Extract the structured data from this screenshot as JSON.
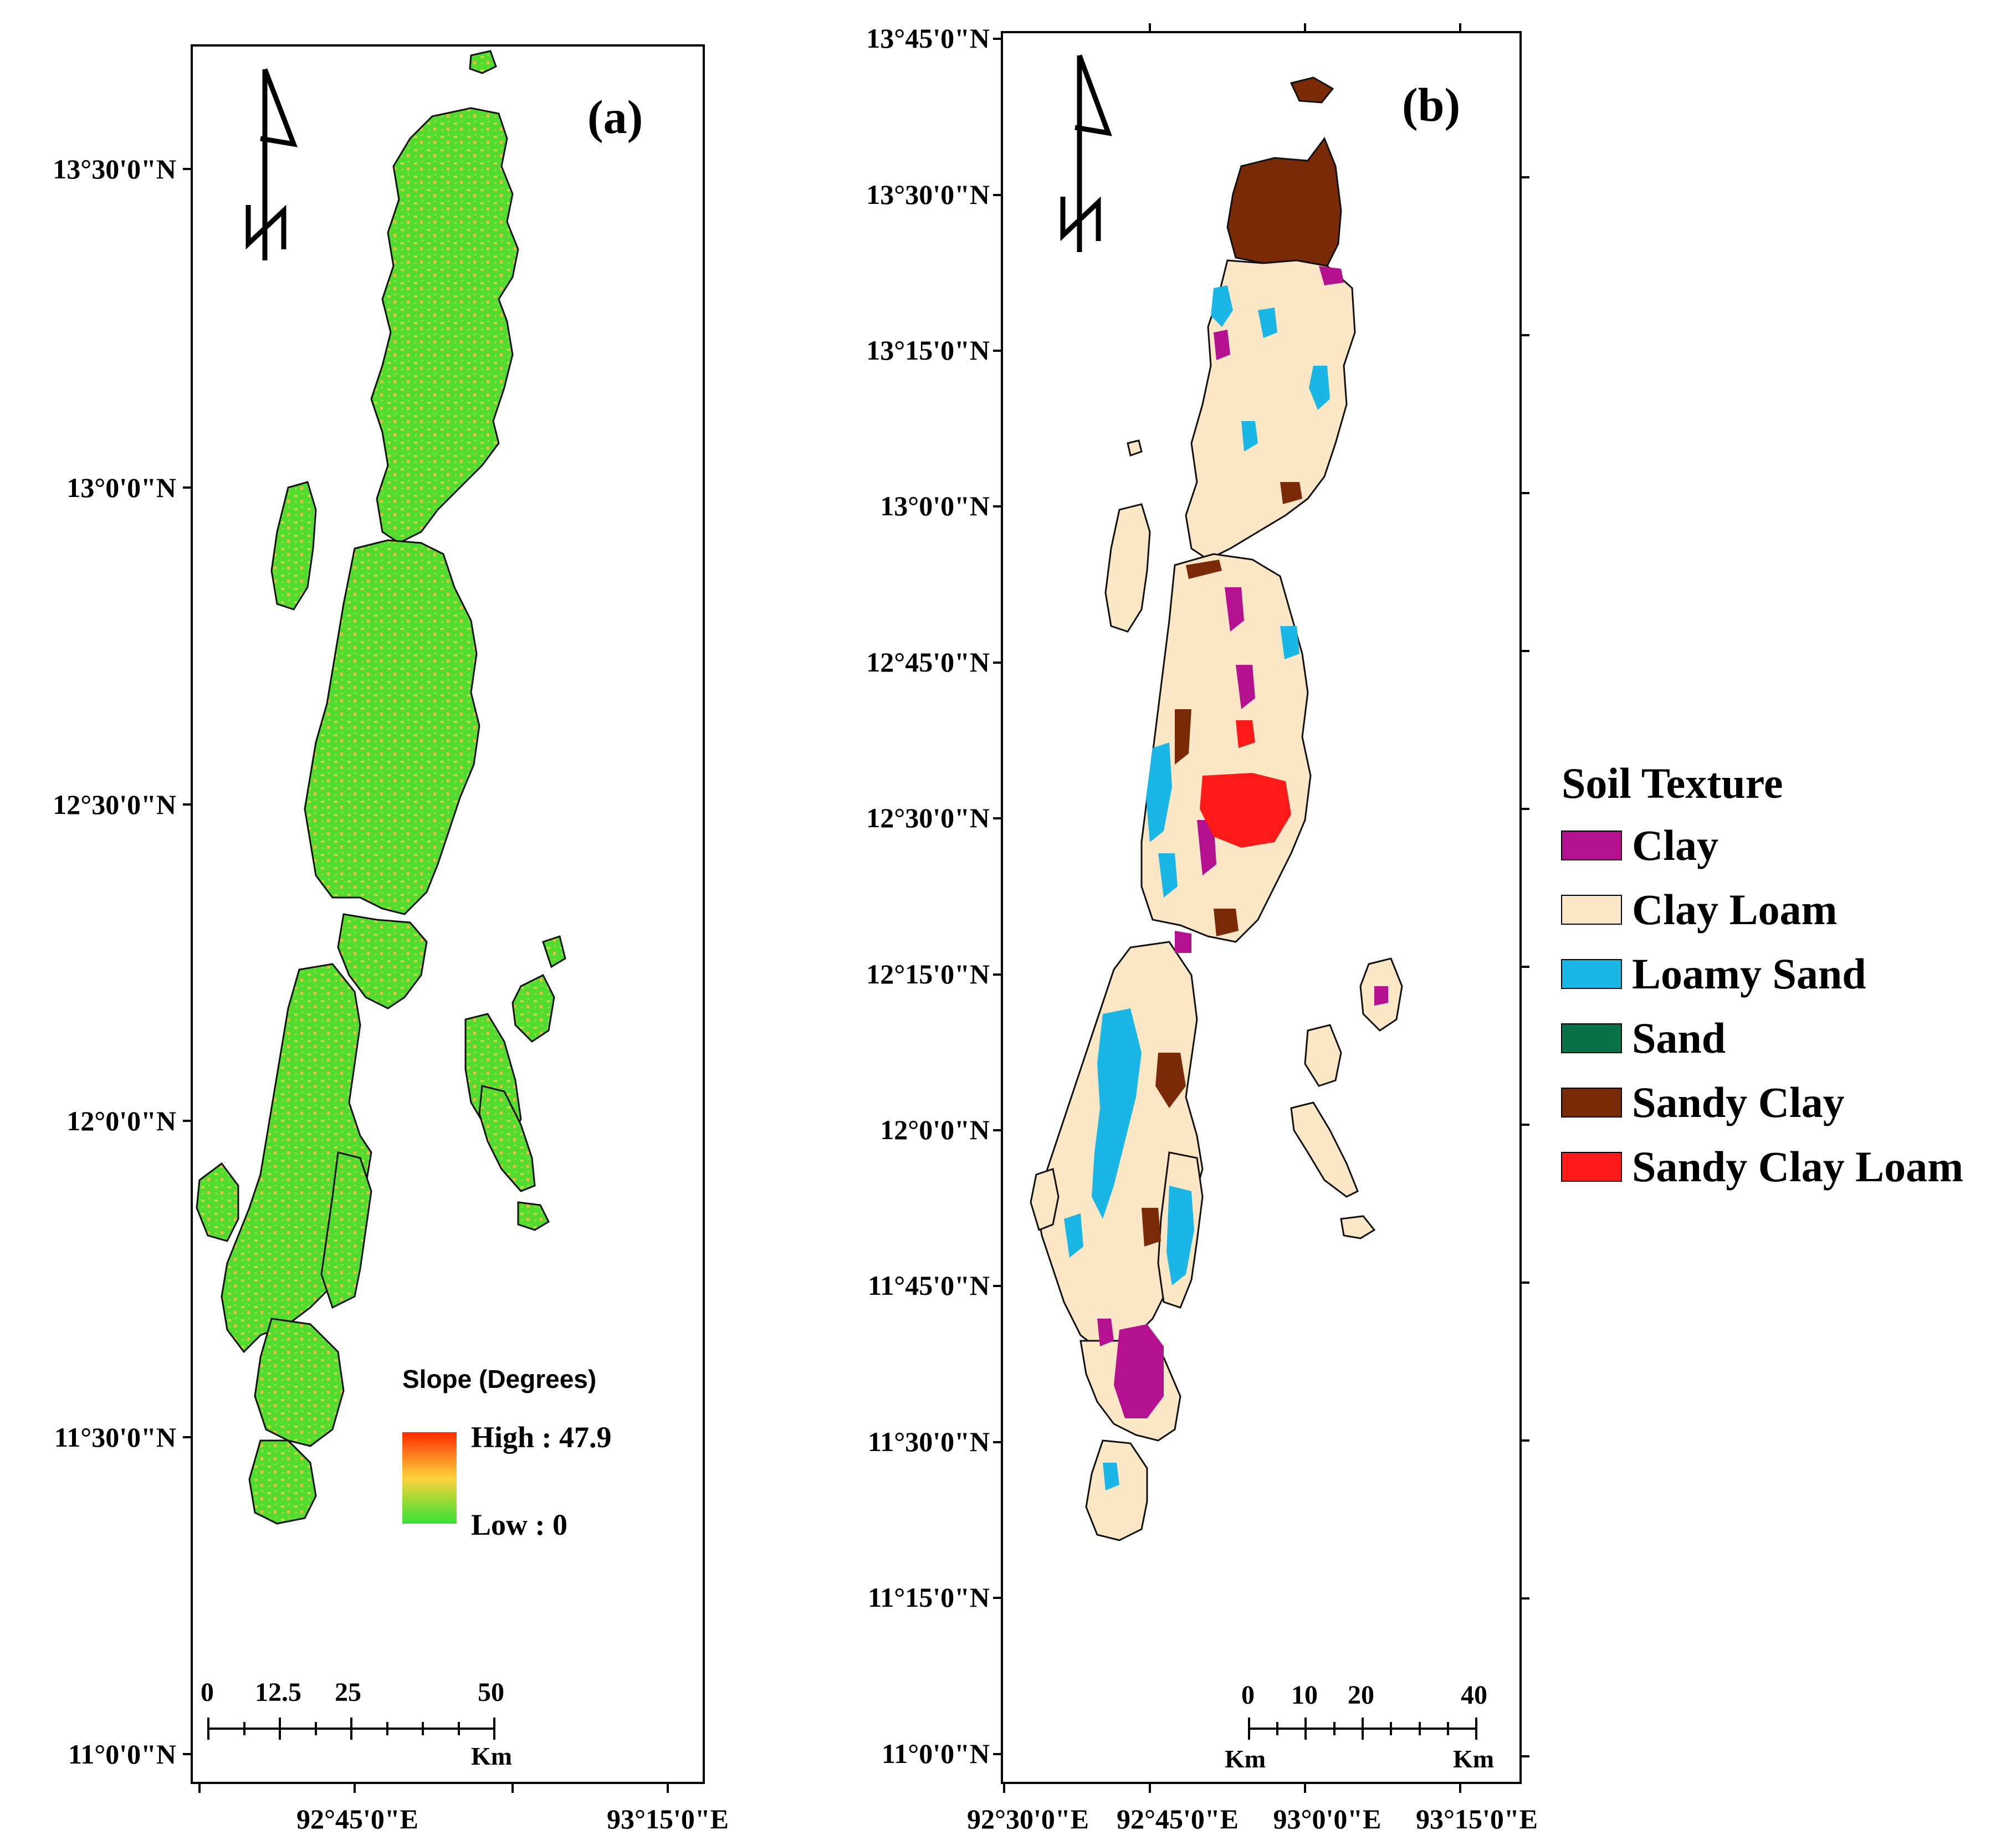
{
  "panel_a": {
    "label": "(a)",
    "lat_labels": [
      "13°30'0\"N",
      "13°0'0\"N",
      "12°30'0\"N",
      "12°0'0\"N",
      "11°30'0\"N",
      "11°0'0\"N"
    ],
    "lon_labels": [
      "92°45'0\"E",
      "93°15'0\"E"
    ],
    "legend": {
      "title": "Slope (Degrees)",
      "high": "High : 47.9",
      "low": "Low : 0",
      "colors": [
        "#ff2a00",
        "#ffd23a",
        "#35e135"
      ]
    },
    "scale_bar": {
      "ticks": [
        "0",
        "12.5",
        "25",
        "50"
      ],
      "unit": "Km"
    }
  },
  "panel_b": {
    "label": "(b)",
    "lat_labels": [
      "13°45'0\"N",
      "13°30'0\"N",
      "13°15'0\"N",
      "13°0'0\"N",
      "12°45'0\"N",
      "12°30'0\"N",
      "12°15'0\"N",
      "12°0'0\"N",
      "11°45'0\"N",
      "11°30'0\"N",
      "11°15'0\"N",
      "11°0'0\"N"
    ],
    "lon_labels": [
      "92°30'0\"E",
      "92°45'0\"E",
      "93°0'0\"E",
      "93°15'0\"E"
    ],
    "scale_bar": {
      "ticks": [
        "0",
        "10",
        "20",
        "40"
      ],
      "unit_left": "Km",
      "unit_right": "Km"
    }
  },
  "soil_legend": {
    "title": "Soil Texture",
    "items": [
      {
        "label": "Clay",
        "color": "#b5108f"
      },
      {
        "label": "Clay Loam",
        "color": "#fbe6c6"
      },
      {
        "label": "Loamy Sand",
        "color": "#1ab7e6"
      },
      {
        "label": "Sand",
        "color": "#0a7048"
      },
      {
        "label": "Sandy Clay",
        "color": "#7a2a06"
      },
      {
        "label": "Sandy Clay Loam",
        "color": "#ff1a1a"
      }
    ]
  },
  "colors": {
    "land_a": "#52dc30",
    "land_b": "#fbe6c6",
    "outline": "#111111"
  }
}
